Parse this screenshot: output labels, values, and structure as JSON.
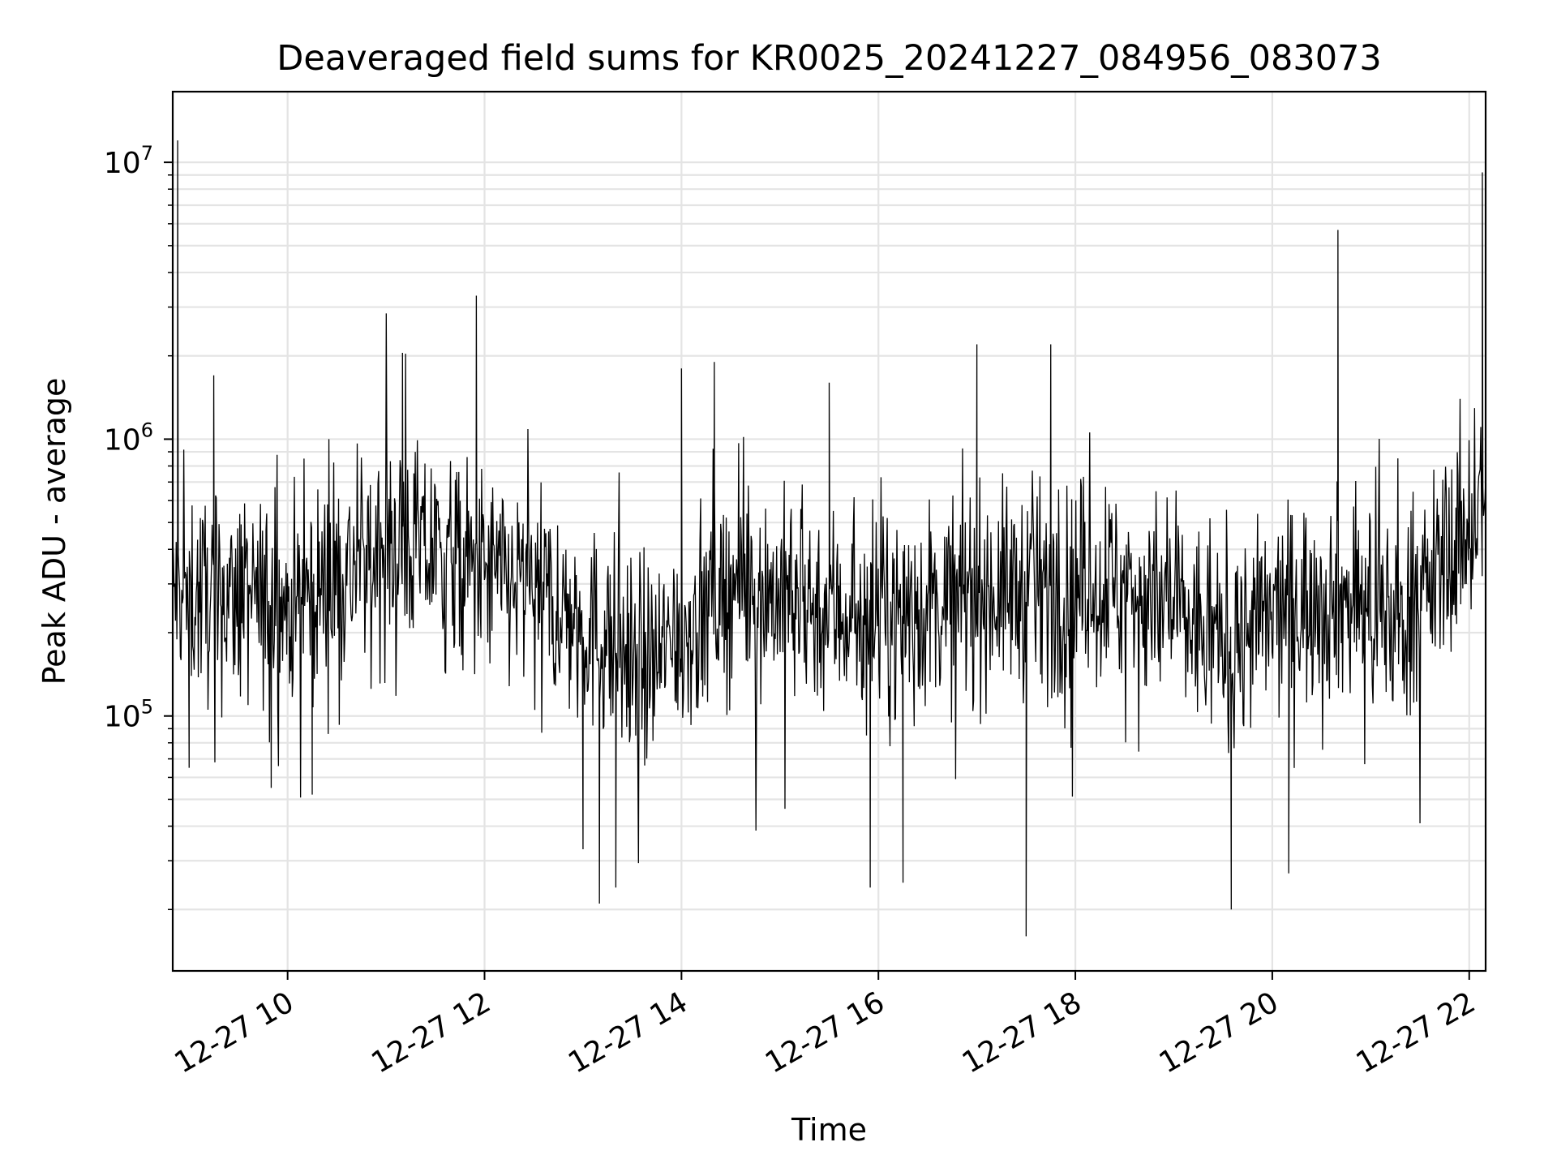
{
  "chart_data": {
    "type": "line",
    "title": "Deaveraged field sums for KR0025_20241227_084956_083073",
    "xlabel": "Time",
    "ylabel": "Peak ADU - average",
    "y_scale": "log",
    "ylim": [
      12000,
      18000000
    ],
    "xlim": [
      "2024-12-27 08:50",
      "2024-12-27 22:10"
    ],
    "x_ticks": [
      {
        "value": "2024-12-27 10:00",
        "label": "12-27 10"
      },
      {
        "value": "2024-12-27 12:00",
        "label": "12-27 12"
      },
      {
        "value": "2024-12-27 14:00",
        "label": "12-27 14"
      },
      {
        "value": "2024-12-27 16:00",
        "label": "12-27 16"
      },
      {
        "value": "2024-12-27 18:00",
        "label": "12-27 18"
      },
      {
        "value": "2024-12-27 20:00",
        "label": "12-27 20"
      },
      {
        "value": "2024-12-27 22:00",
        "label": "12-27 22"
      }
    ],
    "y_ticks": [
      {
        "value": 100000,
        "base": "10",
        "exp": "5"
      },
      {
        "value": 1000000,
        "base": "10",
        "exp": "6"
      },
      {
        "value": 10000000,
        "base": "10",
        "exp": "7"
      }
    ],
    "grid": true,
    "grid_minor": true,
    "series": [
      {
        "color": "#000000",
        "baseline_profile": [
          {
            "x": "2024-12-27 08:50",
            "y": 280000
          },
          {
            "x": "2024-12-27 10:00",
            "y": 250000
          },
          {
            "x": "2024-12-27 11:10",
            "y": 420000
          },
          {
            "x": "2024-12-27 12:30",
            "y": 280000
          },
          {
            "x": "2024-12-27 13:40",
            "y": 150000
          },
          {
            "x": "2024-12-27 14:30",
            "y": 300000
          },
          {
            "x": "2024-12-27 16:00",
            "y": 220000
          },
          {
            "x": "2024-12-27 17:00",
            "y": 280000
          },
          {
            "x": "2024-12-27 18:30",
            "y": 300000
          },
          {
            "x": "2024-12-27 19:30",
            "y": 180000
          },
          {
            "x": "2024-12-27 20:30",
            "y": 280000
          },
          {
            "x": "2024-12-27 21:20",
            "y": 220000
          },
          {
            "x": "2024-12-27 22:10",
            "y": 600000
          }
        ],
        "points": [
          {
            "x": "2024-12-27 08:53",
            "y": 12000000
          },
          {
            "x": "2024-12-27 09:00",
            "y": 65000
          },
          {
            "x": "2024-12-27 09:15",
            "y": 1700000
          },
          {
            "x": "2024-12-27 09:50",
            "y": 55000
          },
          {
            "x": "2024-12-27 10:15",
            "y": 52000
          },
          {
            "x": "2024-12-27 11:10",
            "y": 2050000
          },
          {
            "x": "2024-12-27 11:55",
            "y": 3300000
          },
          {
            "x": "2024-12-27 13:00",
            "y": 33000
          },
          {
            "x": "2024-12-27 13:10",
            "y": 21000
          },
          {
            "x": "2024-12-27 13:20",
            "y": 24000
          },
          {
            "x": "2024-12-27 14:00",
            "y": 1800000
          },
          {
            "x": "2024-12-27 14:20",
            "y": 1900000
          },
          {
            "x": "2024-12-27 15:30",
            "y": 1600000
          },
          {
            "x": "2024-12-27 15:55",
            "y": 24000
          },
          {
            "x": "2024-12-27 16:15",
            "y": 25000
          },
          {
            "x": "2024-12-27 17:00",
            "y": 2200000
          },
          {
            "x": "2024-12-27 17:30",
            "y": 16000
          },
          {
            "x": "2024-12-27 17:45",
            "y": 2200000
          },
          {
            "x": "2024-12-27 19:35",
            "y": 20000
          },
          {
            "x": "2024-12-27 20:10",
            "y": 27000
          },
          {
            "x": "2024-12-27 20:40",
            "y": 5700000
          },
          {
            "x": "2024-12-27 22:08",
            "y": 9200000
          }
        ]
      }
    ]
  }
}
